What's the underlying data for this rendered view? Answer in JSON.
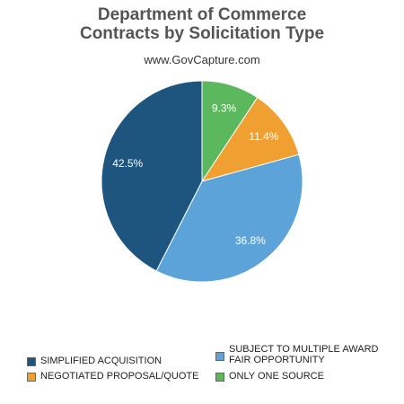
{
  "chart_data": {
    "type": "pie",
    "title": "Department of Commerce\nContracts by Solicitation Type",
    "subtitle": "www.GovCapture.com",
    "slices": [
      {
        "label": "ONLY ONE SOURCE",
        "value": 9.3,
        "display": "9.3%",
        "color": "#5cb85c"
      },
      {
        "label": "NEGOTIATED PROPOSAL/QUOTE",
        "value": 11.4,
        "display": "11.4%",
        "color": "#f0a030"
      },
      {
        "label": "SUBJECT TO MULTIPLE AWARD FAIR OPPORTUNITY",
        "value": 36.8,
        "display": "36.8%",
        "color": "#5ba3d9"
      },
      {
        "label": "SIMPLIFIED ACQUISITION",
        "value": 42.5,
        "display": "42.5%",
        "color": "#1d557f"
      }
    ],
    "legend": [
      {
        "label": "SIMPLIFIED ACQUISITION",
        "color": "#1d557f"
      },
      {
        "label": "NEGOTIATED PROPOSAL/QUOTE",
        "color": "#f0a030"
      },
      {
        "label": "SUBJECT TO MULTIPLE AWARD\nFAIR OPPORTUNITY",
        "color": "#5ba3d9"
      },
      {
        "label": "ONLY ONE SOURCE",
        "color": "#5cb85c"
      }
    ]
  }
}
